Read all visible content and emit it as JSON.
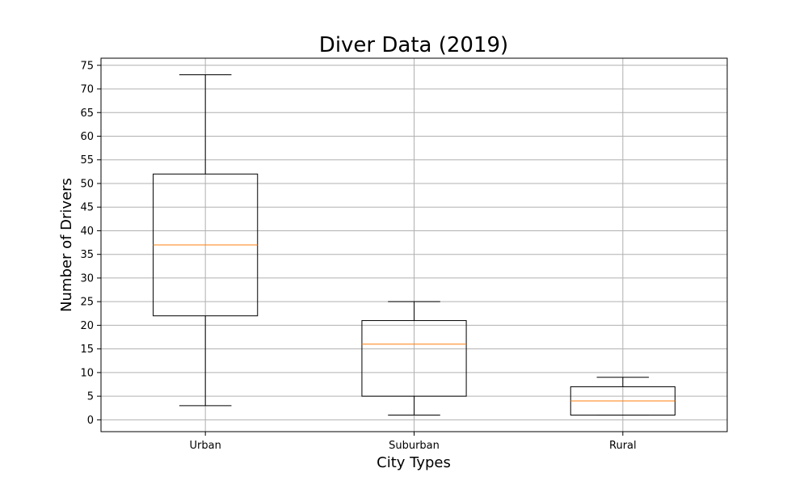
{
  "chart_data": {
    "type": "box",
    "title": "Diver Data (2019)",
    "xlabel": "City Types",
    "ylabel": "Number of Drivers",
    "categories": [
      "Urban",
      "Suburban",
      "Rural"
    ],
    "boxes": [
      {
        "category": "Urban",
        "whisker_low": 3,
        "q1": 22,
        "median": 37,
        "q3": 52,
        "whisker_high": 73
      },
      {
        "category": "Suburban",
        "whisker_low": 1,
        "q1": 5,
        "median": 16,
        "q3": 21,
        "whisker_high": 25
      },
      {
        "category": "Rural",
        "whisker_low": 1,
        "q1": 1,
        "median": 4,
        "q3": 7,
        "whisker_high": 9
      }
    ],
    "ylim": [
      -2.5,
      76.5
    ],
    "yticks": [
      0,
      5,
      10,
      15,
      20,
      25,
      30,
      35,
      40,
      45,
      50,
      55,
      60,
      65,
      70,
      75
    ],
    "grid": true,
    "colors": {
      "box": "#000000",
      "median": "#ff7f0e",
      "grid": "#b0b0b0"
    }
  }
}
